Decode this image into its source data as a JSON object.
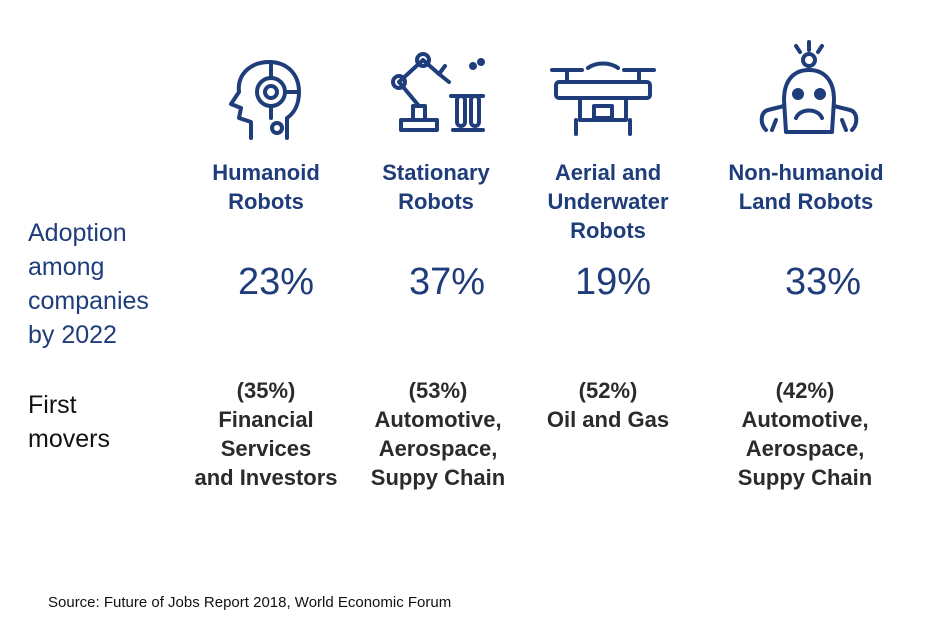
{
  "row_labels": {
    "adoption": [
      "Adoption",
      "among",
      "companies",
      "by 2022"
    ],
    "first_movers": [
      "First",
      "movers"
    ]
  },
  "chart_data": {
    "type": "table",
    "title": "",
    "metric": "Adoption among companies by 2022",
    "unit": "%",
    "categories": [
      {
        "name_lines": [
          "Humanoid",
          "Robots"
        ],
        "icon": "humanoid-robot-head-icon",
        "adoption_pct": 23,
        "adoption_label": "23%",
        "first_mover_pct_label": "(35%)",
        "first_mover_lines": [
          "Financial",
          "Services",
          "and Investors"
        ]
      },
      {
        "name_lines": [
          "Stationary",
          "Robots"
        ],
        "icon": "robotic-arm-icon",
        "adoption_pct": 37,
        "adoption_label": "37%",
        "first_mover_pct_label": "(53%)",
        "first_mover_lines": [
          "Automotive,",
          "Aerospace,",
          "Suppy Chain"
        ]
      },
      {
        "name_lines": [
          "Aerial and",
          "Underwater",
          "Robots"
        ],
        "icon": "drone-icon",
        "adoption_pct": 19,
        "adoption_label": "19%",
        "first_mover_pct_label": "(52%)",
        "first_mover_lines": [
          "Oil and Gas"
        ]
      },
      {
        "name_lines": [
          "Non-humanoid",
          "Land Robots"
        ],
        "icon": "land-robot-icon",
        "adoption_pct": 33,
        "adoption_label": "33%",
        "first_mover_pct_label": "(42%)",
        "first_mover_lines": [
          "Automotive,",
          "Aerospace,",
          "Suppy Chain"
        ]
      }
    ]
  },
  "source": "Source: Future of Jobs Report 2018, World Economic Forum",
  "colors": {
    "primary": "#1f3d7a",
    "text": "#111111"
  }
}
